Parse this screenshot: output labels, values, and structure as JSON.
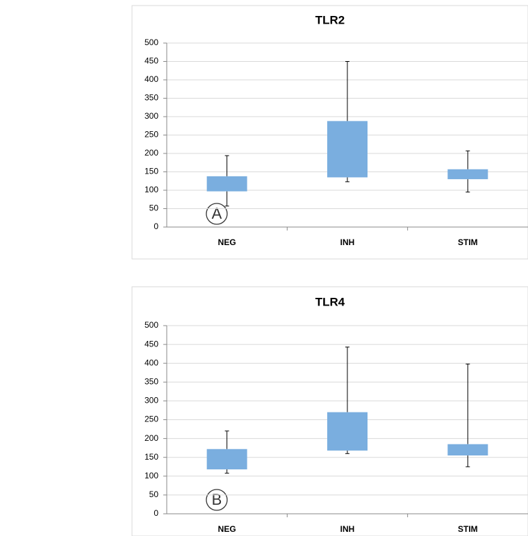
{
  "chart_data": [
    {
      "type": "box",
      "panel_label": "A",
      "title": "TLR2",
      "categories": [
        "NEG",
        "INH",
        "STIM"
      ],
      "color": "#7aaedf",
      "min": [
        57,
        123,
        95
      ],
      "q1": [
        97,
        135,
        130
      ],
      "q3": [
        138,
        288,
        157
      ],
      "max": [
        194,
        450,
        207
      ],
      "ylim": [
        0,
        500
      ],
      "yticks": [
        0,
        50,
        100,
        150,
        200,
        250,
        300,
        350,
        400,
        450,
        500
      ],
      "grid": true
    },
    {
      "type": "box",
      "panel_label": "B",
      "title": "TLR4",
      "categories": [
        "NEG",
        "INH",
        "STIM"
      ],
      "color": "#7aaedf",
      "min": [
        108,
        160,
        125
      ],
      "q1": [
        118,
        168,
        155
      ],
      "q3": [
        172,
        270,
        185
      ],
      "max": [
        220,
        443,
        398
      ],
      "ylim": [
        0,
        500
      ],
      "yticks": [
        0,
        50,
        100,
        150,
        200,
        250,
        300,
        350,
        400,
        450,
        500
      ],
      "grid": true
    }
  ]
}
